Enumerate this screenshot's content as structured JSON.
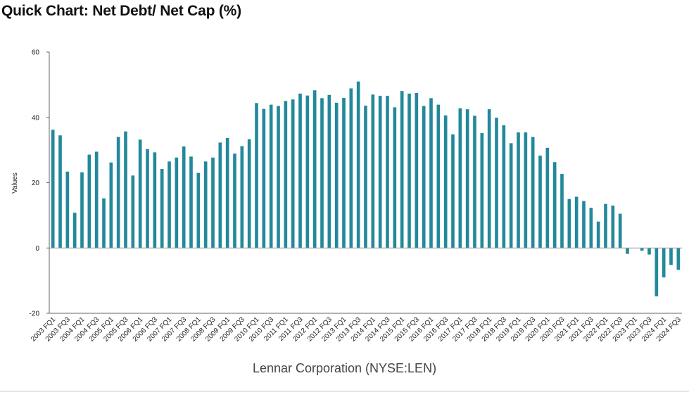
{
  "title": "Quick Chart: Net Debt/ Net Cap (%)",
  "footer": "Lennar Corporation (NYSE:LEN)",
  "colors": {
    "bar": "#23899a",
    "axis": "#666666",
    "grid": "#e6e6e6"
  },
  "chart_data": {
    "type": "bar",
    "ylabel": "Values",
    "ylim": [
      -20,
      60
    ],
    "yticks": [
      60,
      40,
      20,
      0,
      -20
    ],
    "grid": false,
    "categories": [
      "2003 FQ1",
      "2003 FQ2",
      "2003 FQ3",
      "2003 FQ4",
      "2004 FQ1",
      "2004 FQ2",
      "2004 FQ3",
      "2004 FQ4",
      "2005 FQ1",
      "2005 FQ2",
      "2005 FQ3",
      "2005 FQ4",
      "2006 FQ1",
      "2006 FQ2",
      "2006 FQ3",
      "2006 FQ4",
      "2007 FQ1",
      "2007 FQ2",
      "2007 FQ3",
      "2007 FQ4",
      "2008 FQ1",
      "2008 FQ2",
      "2008 FQ3",
      "2008 FQ4",
      "2009 FQ1",
      "2009 FQ2",
      "2009 FQ3",
      "2009 FQ4",
      "2010 FQ1",
      "2010 FQ2",
      "2010 FQ3",
      "2010 FQ4",
      "2011 FQ1",
      "2011 FQ2",
      "2011 FQ3",
      "2011 FQ4",
      "2012 FQ1",
      "2012 FQ2",
      "2012 FQ3",
      "2012 FQ4",
      "2013 FQ1",
      "2013 FQ2",
      "2013 FQ3",
      "2013 FQ4",
      "2014 FQ1",
      "2014 FQ2",
      "2014 FQ3",
      "2014 FQ4",
      "2015 FQ1",
      "2015 FQ2",
      "2015 FQ3",
      "2015 FQ4",
      "2016 FQ1",
      "2016 FQ2",
      "2016 FQ3",
      "2016 FQ4",
      "2017 FQ1",
      "2017 FQ2",
      "2017 FQ3",
      "2017 FQ4",
      "2018 FQ1",
      "2018 FQ2",
      "2018 FQ3",
      "2018 FQ4",
      "2019 FQ1",
      "2019 FQ2",
      "2019 FQ3",
      "2019 FQ4",
      "2020 FQ1",
      "2020 FQ2",
      "2020 FQ3",
      "2020 FQ4",
      "2021 FQ1",
      "2021 FQ2",
      "2021 FQ3",
      "2021 FQ4",
      "2022 FQ1",
      "2022 FQ2",
      "2022 FQ3",
      "2022 FQ4",
      "2023 FQ1",
      "2023 FQ2",
      "2023 FQ3",
      "2023 FQ4",
      "2024 FQ1",
      "2024 FQ2",
      "2024 FQ3"
    ],
    "xticklabels": [
      "2003 FQ1",
      "2003 FQ3",
      "2004 FQ1",
      "2004 FQ3",
      "2005 FQ1",
      "2005 FQ3",
      "2006 FQ1",
      "2006 FQ3",
      "2007 FQ1",
      "2007 FQ3",
      "2008 FQ1",
      "2008 FQ3",
      "2009 FQ1",
      "2009 FQ3",
      "2010 FQ1",
      "2010 FQ3",
      "2011 FQ1",
      "2011 FQ3",
      "2012 FQ1",
      "2012 FQ3",
      "2013 FQ1",
      "2013 FQ3",
      "2014 FQ1",
      "2014 FQ3",
      "2015 FQ1",
      "2015 FQ3",
      "2016 FQ1",
      "2016 FQ3",
      "2017 FQ1",
      "2017 FQ3",
      "2018 FQ1",
      "2018 FQ3",
      "2019 FQ1",
      "2019 FQ3",
      "2020 FQ1",
      "2020 FQ3",
      "2021 FQ1",
      "2021 FQ3",
      "2022 FQ1",
      "2022 FQ3",
      "2023 FQ1",
      "2023 FQ3",
      "2024 FQ1",
      "2024 FQ3"
    ],
    "values": [
      36.2,
      34.5,
      23.4,
      10.8,
      23.2,
      28.6,
      29.5,
      15.2,
      26.2,
      34.0,
      35.7,
      22.2,
      33.2,
      30.3,
      29.3,
      24.2,
      26.5,
      27.7,
      31.1,
      28.0,
      23.0,
      26.5,
      27.7,
      32.3,
      33.7,
      28.9,
      31.2,
      33.3,
      44.4,
      42.6,
      43.9,
      43.5,
      45.0,
      45.5,
      47.3,
      46.7,
      48.3,
      45.9,
      46.9,
      44.5,
      46.0,
      48.9,
      51.0,
      43.6,
      47.0,
      46.6,
      46.6,
      43.1,
      48.1,
      47.3,
      47.5,
      43.5,
      45.9,
      43.9,
      40.6,
      34.8,
      42.8,
      42.5,
      40.5,
      35.2,
      42.5,
      39.9,
      37.6,
      32.1,
      35.4,
      35.4,
      34.0,
      28.3,
      30.7,
      26.3,
      22.7,
      15.0,
      15.7,
      14.4,
      12.3,
      8.1,
      13.5,
      13.0,
      10.5,
      -1.8,
      0.0,
      -0.8,
      -2.0,
      -14.8,
      -9.0,
      -5.2,
      -6.7
    ]
  }
}
